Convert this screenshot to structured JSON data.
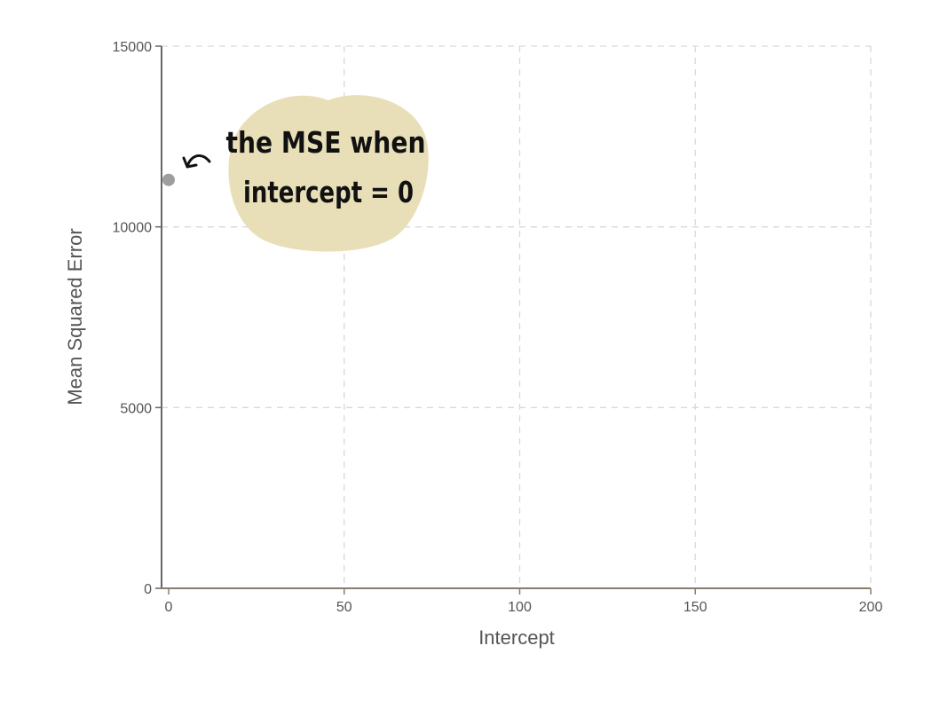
{
  "chart_data": {
    "type": "scatter",
    "title": "",
    "xlabel": "Intercept",
    "ylabel": "Mean Squared Error",
    "xlim": [
      0,
      200
    ],
    "ylim": [
      0,
      15000
    ],
    "xticks": [
      0,
      50,
      100,
      150,
      200
    ],
    "yticks": [
      0,
      5000,
      10000,
      15000
    ],
    "x_tick_labels": [
      "0",
      "50",
      "100",
      "150",
      "200"
    ],
    "y_tick_labels": [
      "0",
      "5000",
      "10000",
      "15000"
    ],
    "grid": true,
    "series": [
      {
        "x": [
          0
        ],
        "y": [
          11300
        ],
        "color": "#9e9e9e"
      }
    ],
    "annotations": [
      {
        "lines": [
          "the MSE when",
          "intercept = 0"
        ],
        "points_to": {
          "x": 0,
          "y": 11300
        },
        "background": "#e8dfb8"
      }
    ]
  },
  "colors": {
    "axis": "#666666",
    "x_axis_line": "#8a7d6e",
    "grid": "#d9d9d9",
    "text": "#555555",
    "point": "#9e9e9e",
    "annotation_bg": "#e8dfb8",
    "annotation_text": "#111111"
  }
}
